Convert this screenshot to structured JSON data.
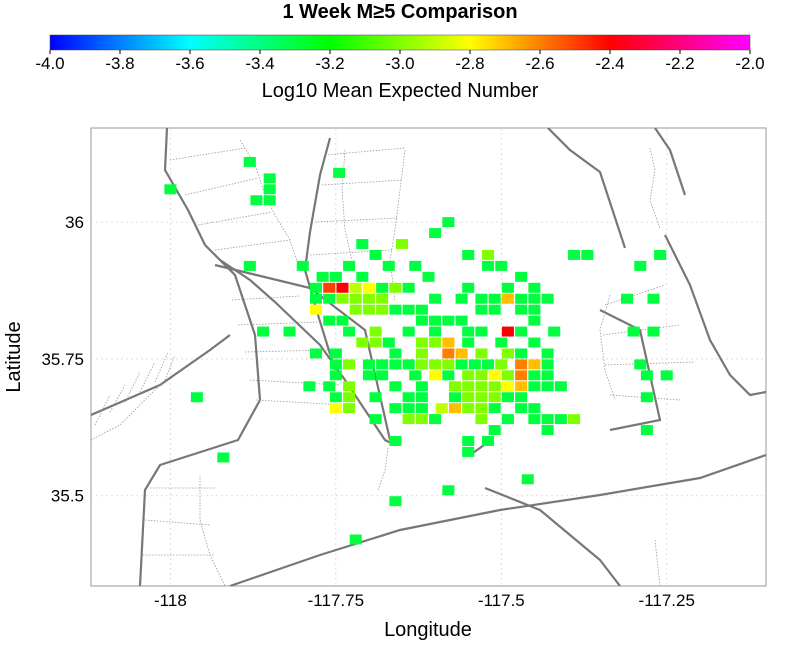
{
  "chart_data": {
    "type": "heatmap",
    "title": "1 Week M≥5 Comparison",
    "colorbar": {
      "label": "Log10 Mean Expected Number",
      "range": [
        -4.0,
        -2.0
      ],
      "ticks": [
        "-4.0",
        "-3.8",
        "-3.6",
        "-3.4",
        "-3.2",
        "-3.0",
        "-2.8",
        "-2.6",
        "-2.4",
        "-2.2",
        "-2.0"
      ],
      "colors": [
        "#0000ff",
        "#00ffff",
        "#00ff00",
        "#ffff00",
        "#ff0000",
        "#ff00ff"
      ]
    },
    "xlabel": "Longitude",
    "ylabel": "Latitude",
    "xlim": [
      -118.12,
      -117.1
    ],
    "ylim": [
      35.335,
      36.172
    ],
    "x_ticks": [
      -118,
      -117.75,
      -117.5,
      -117.25
    ],
    "x_tick_labels": [
      "-118",
      "-117.75",
      "-117.5",
      "-117.25"
    ],
    "y_ticks": [
      35.5,
      35.75,
      36
    ],
    "y_tick_labels": [
      "35.5",
      "35.75",
      "36"
    ],
    "grid": true,
    "cell_size_deg": 0.0182,
    "cells": [
      [
        -117.745,
        36.09,
        -3.3
      ],
      [
        -118.0,
        36.06,
        -3.3
      ],
      [
        -117.88,
        36.11,
        -3.3
      ],
      [
        -117.85,
        36.08,
        -3.3
      ],
      [
        -117.85,
        36.06,
        -3.3
      ],
      [
        -117.85,
        36.04,
        -3.3
      ],
      [
        -117.87,
        36.04,
        -3.3
      ],
      [
        -117.58,
        36.0,
        -3.3
      ],
      [
        -117.6,
        35.98,
        -3.3
      ],
      [
        -117.71,
        35.96,
        -3.3
      ],
      [
        -117.65,
        35.96,
        -3.0
      ],
      [
        -117.69,
        35.94,
        -3.3
      ],
      [
        -117.67,
        35.92,
        -3.3
      ],
      [
        -117.73,
        35.92,
        -3.3
      ],
      [
        -117.63,
        35.92,
        -3.3
      ],
      [
        -117.8,
        35.92,
        -3.3
      ],
      [
        -117.71,
        35.9,
        -3.3
      ],
      [
        -117.75,
        35.9,
        -3.3
      ],
      [
        -117.77,
        35.9,
        -3.3
      ],
      [
        -117.61,
        35.9,
        -3.3
      ],
      [
        -117.76,
        35.88,
        -2.5
      ],
      [
        -117.74,
        35.88,
        -2.4
      ],
      [
        -117.72,
        35.88,
        -2.9
      ],
      [
        -117.7,
        35.88,
        -2.8
      ],
      [
        -117.68,
        35.88,
        -3.3
      ],
      [
        -117.66,
        35.88,
        -3.0
      ],
      [
        -117.64,
        35.88,
        -3.3
      ],
      [
        -117.78,
        35.88,
        -3.3
      ],
      [
        -117.55,
        35.88,
        -3.3
      ],
      [
        -117.74,
        35.86,
        -3.0
      ],
      [
        -117.72,
        35.86,
        -3.0
      ],
      [
        -117.7,
        35.86,
        -3.0
      ],
      [
        -117.68,
        35.86,
        -3.0
      ],
      [
        -117.76,
        35.86,
        -3.3
      ],
      [
        -117.52,
        35.92,
        -3.3
      ],
      [
        -117.52,
        35.94,
        -3.0
      ],
      [
        -117.55,
        35.94,
        -3.3
      ],
      [
        -117.5,
        35.92,
        -3.3
      ],
      [
        -117.47,
        35.9,
        -3.3
      ],
      [
        -117.49,
        35.88,
        -3.3
      ],
      [
        -117.45,
        35.88,
        -3.3
      ],
      [
        -117.39,
        35.94,
        -3.3
      ],
      [
        -117.37,
        35.94,
        -3.3
      ],
      [
        -117.29,
        35.92,
        -3.3
      ],
      [
        -117.26,
        35.94,
        -3.3
      ],
      [
        -117.31,
        35.86,
        -3.3
      ],
      [
        -117.27,
        35.86,
        -3.3
      ],
      [
        -117.88,
        35.92,
        -3.3
      ],
      [
        -117.78,
        35.84,
        -2.8
      ],
      [
        -117.78,
        35.86,
        -3.3
      ],
      [
        -117.76,
        35.82,
        -3.3
      ],
      [
        -117.74,
        35.82,
        -3.3
      ],
      [
        -117.72,
        35.84,
        -3.0
      ],
      [
        -117.7,
        35.84,
        -3.0
      ],
      [
        -117.68,
        35.84,
        -3.0
      ],
      [
        -117.66,
        35.84,
        -3.3
      ],
      [
        -117.64,
        35.84,
        -3.3
      ],
      [
        -117.62,
        35.82,
        -3.3
      ],
      [
        -117.6,
        35.82,
        -3.3
      ],
      [
        -117.58,
        35.82,
        -3.3
      ],
      [
        -117.56,
        35.82,
        -3.3
      ],
      [
        -117.62,
        35.84,
        -3.3
      ],
      [
        -117.6,
        35.86,
        -3.3
      ],
      [
        -117.56,
        35.86,
        -3.3
      ],
      [
        -117.53,
        35.86,
        -3.3
      ],
      [
        -117.51,
        35.86,
        -3.3
      ],
      [
        -117.53,
        35.84,
        -3.3
      ],
      [
        -117.51,
        35.84,
        -3.3
      ],
      [
        -117.49,
        35.86,
        -2.7
      ],
      [
        -117.47,
        35.86,
        -3.3
      ],
      [
        -117.45,
        35.86,
        -3.3
      ],
      [
        -117.43,
        35.86,
        -3.3
      ],
      [
        -117.45,
        35.82,
        -3.3
      ],
      [
        -117.47,
        35.84,
        -3.3
      ],
      [
        -117.45,
        35.84,
        -3.3
      ],
      [
        -117.86,
        35.8,
        -3.3
      ],
      [
        -117.82,
        35.8,
        -3.3
      ],
      [
        -117.73,
        35.8,
        -3.3
      ],
      [
        -117.69,
        35.8,
        -3.0
      ],
      [
        -117.64,
        35.8,
        -3.3
      ],
      [
        -117.6,
        35.8,
        -3.3
      ],
      [
        -117.55,
        35.8,
        -3.3
      ],
      [
        -117.53,
        35.8,
        -3.3
      ],
      [
        -117.49,
        35.8,
        -2.4
      ],
      [
        -117.47,
        35.8,
        -3.3
      ],
      [
        -117.42,
        35.8,
        -3.3
      ],
      [
        -117.3,
        35.8,
        -3.3
      ],
      [
        -117.27,
        35.8,
        -3.3
      ],
      [
        -117.71,
        35.78,
        -3.0
      ],
      [
        -117.69,
        35.78,
        -3.0
      ],
      [
        -117.67,
        35.78,
        -3.3
      ],
      [
        -117.62,
        35.78,
        -3.0
      ],
      [
        -117.6,
        35.78,
        -3.0
      ],
      [
        -117.58,
        35.78,
        -2.7
      ],
      [
        -117.55,
        35.78,
        -3.3
      ],
      [
        -117.5,
        35.78,
        -3.3
      ],
      [
        -117.45,
        35.78,
        -3.3
      ],
      [
        -117.78,
        35.76,
        -3.3
      ],
      [
        -117.75,
        35.76,
        -3.3
      ],
      [
        -117.66,
        35.76,
        -3.3
      ],
      [
        -117.62,
        35.76,
        -3.0
      ],
      [
        -117.58,
        35.76,
        -2.6
      ],
      [
        -117.56,
        35.76,
        -2.7
      ],
      [
        -117.53,
        35.76,
        -3.0
      ],
      [
        -117.49,
        35.76,
        -3.0
      ],
      [
        -117.47,
        35.76,
        -3.3
      ],
      [
        -117.43,
        35.76,
        -3.3
      ],
      [
        -117.75,
        35.74,
        -3.3
      ],
      [
        -117.73,
        35.74,
        -3.0
      ],
      [
        -117.7,
        35.74,
        -3.3
      ],
      [
        -117.68,
        35.74,
        -3.3
      ],
      [
        -117.66,
        35.74,
        -3.3
      ],
      [
        -117.64,
        35.74,
        -3.3
      ],
      [
        -117.62,
        35.74,
        -3.0
      ],
      [
        -117.6,
        35.74,
        -3.0
      ],
      [
        -117.58,
        35.74,
        -3.0
      ],
      [
        -117.56,
        35.74,
        -3.3
      ],
      [
        -117.54,
        35.74,
        -3.3
      ],
      [
        -117.52,
        35.74,
        -3.3
      ],
      [
        -117.5,
        35.74,
        -3.0
      ],
      [
        -117.47,
        35.74,
        -2.6
      ],
      [
        -117.45,
        35.74,
        -2.7
      ],
      [
        -117.43,
        35.74,
        -3.3
      ],
      [
        -117.29,
        35.74,
        -3.3
      ],
      [
        -117.75,
        35.72,
        -3.3
      ],
      [
        -117.7,
        35.72,
        -3.3
      ],
      [
        -117.68,
        35.72,
        -3.3
      ],
      [
        -117.63,
        35.72,
        -3.3
      ],
      [
        -117.6,
        35.72,
        -2.8
      ],
      [
        -117.58,
        35.72,
        -3.3
      ],
      [
        -117.55,
        35.72,
        -3.0
      ],
      [
        -117.53,
        35.72,
        -3.0
      ],
      [
        -117.51,
        35.72,
        -2.8
      ],
      [
        -117.49,
        35.72,
        -3.0
      ],
      [
        -117.47,
        35.72,
        -2.6
      ],
      [
        -117.45,
        35.72,
        -3.3
      ],
      [
        -117.43,
        35.72,
        -3.3
      ],
      [
        -117.28,
        35.72,
        -3.3
      ],
      [
        -117.25,
        35.72,
        -3.3
      ],
      [
        -117.79,
        35.7,
        -3.3
      ],
      [
        -117.76,
        35.7,
        -3.3
      ],
      [
        -117.73,
        35.7,
        -3.0
      ],
      [
        -117.66,
        35.7,
        -3.3
      ],
      [
        -117.62,
        35.7,
        -3.3
      ],
      [
        -117.57,
        35.7,
        -3.0
      ],
      [
        -117.55,
        35.7,
        -3.0
      ],
      [
        -117.53,
        35.7,
        -3.0
      ],
      [
        -117.51,
        35.7,
        -3.0
      ],
      [
        -117.49,
        35.7,
        -2.8
      ],
      [
        -117.47,
        35.7,
        -2.7
      ],
      [
        -117.45,
        35.7,
        -3.3
      ],
      [
        -117.43,
        35.7,
        -3.3
      ],
      [
        -117.41,
        35.7,
        -3.3
      ],
      [
        -117.96,
        35.68,
        -3.3
      ],
      [
        -117.75,
        35.68,
        -3.3
      ],
      [
        -117.73,
        35.68,
        -3.0
      ],
      [
        -117.69,
        35.68,
        -3.3
      ],
      [
        -117.64,
        35.68,
        -3.3
      ],
      [
        -117.62,
        35.68,
        -3.3
      ],
      [
        -117.57,
        35.68,
        -3.3
      ],
      [
        -117.55,
        35.68,
        -3.0
      ],
      [
        -117.53,
        35.68,
        -3.0
      ],
      [
        -117.51,
        35.68,
        -3.0
      ],
      [
        -117.49,
        35.68,
        -3.3
      ],
      [
        -117.47,
        35.68,
        -3.3
      ],
      [
        -117.28,
        35.68,
        -3.3
      ],
      [
        -117.75,
        35.66,
        -2.8
      ],
      [
        -117.73,
        35.66,
        -3.0
      ],
      [
        -117.66,
        35.66,
        -3.3
      ],
      [
        -117.64,
        35.66,
        -3.3
      ],
      [
        -117.62,
        35.66,
        -3.3
      ],
      [
        -117.59,
        35.66,
        -2.9
      ],
      [
        -117.57,
        35.66,
        -2.7
      ],
      [
        -117.55,
        35.66,
        -3.0
      ],
      [
        -117.53,
        35.66,
        -3.0
      ],
      [
        -117.51,
        35.66,
        -3.3
      ],
      [
        -117.47,
        35.66,
        -3.3
      ],
      [
        -117.45,
        35.66,
        -3.3
      ],
      [
        -117.69,
        35.64,
        -3.3
      ],
      [
        -117.64,
        35.64,
        -3.0
      ],
      [
        -117.62,
        35.64,
        -3.0
      ],
      [
        -117.6,
        35.64,
        -3.3
      ],
      [
        -117.53,
        35.64,
        -3.0
      ],
      [
        -117.49,
        35.64,
        -3.3
      ],
      [
        -117.45,
        35.64,
        -3.3
      ],
      [
        -117.43,
        35.64,
        -3.3
      ],
      [
        -117.41,
        35.64,
        -3.3
      ],
      [
        -117.39,
        35.64,
        -3.0
      ],
      [
        -117.51,
        35.62,
        -3.3
      ],
      [
        -117.43,
        35.62,
        -3.3
      ],
      [
        -117.28,
        35.62,
        -3.3
      ],
      [
        -117.55,
        35.6,
        -3.3
      ],
      [
        -117.52,
        35.6,
        -3.3
      ],
      [
        -117.55,
        35.58,
        -3.3
      ],
      [
        -117.66,
        35.6,
        -3.3
      ],
      [
        -117.92,
        35.57,
        -3.3
      ],
      [
        -117.46,
        35.53,
        -3.3
      ],
      [
        -117.58,
        35.51,
        -3.3
      ],
      [
        -117.66,
        35.49,
        -3.3
      ],
      [
        -117.72,
        35.42,
        -3.3
      ]
    ]
  }
}
